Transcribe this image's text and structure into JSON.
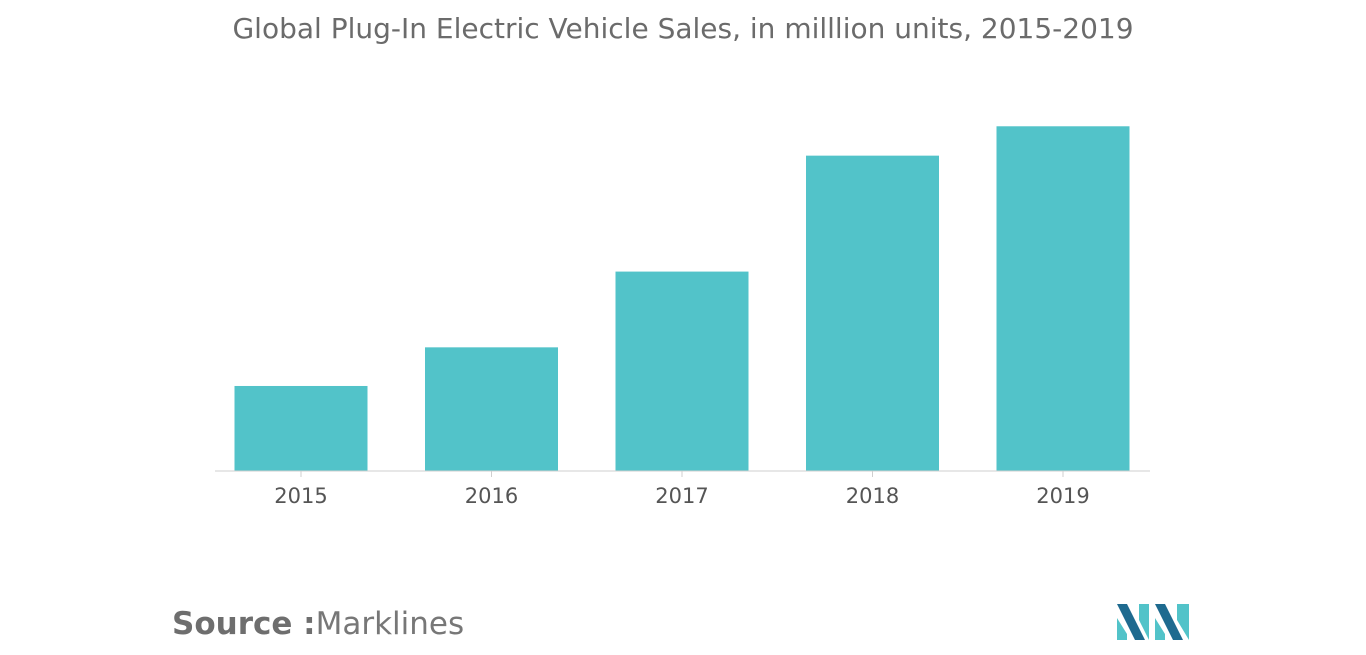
{
  "chart_data": {
    "type": "bar",
    "title": "Global Plug-In Electric Vehicle Sales, in milllion units, 2015-2019",
    "categories": [
      "2015",
      "2016",
      "2017",
      "2018",
      "2019"
    ],
    "values": [
      0.55,
      0.8,
      1.29,
      2.04,
      2.23
    ],
    "xlabel": "",
    "ylabel": "",
    "ylim": [
      0,
      2.4
    ],
    "grid": false,
    "legend": "none",
    "bar_color": "#52c3c9"
  },
  "source": {
    "label": "Source :",
    "value": "Marklines"
  },
  "colors": {
    "logo_dark": "#1e6a8f",
    "logo_light": "#52c3c9"
  }
}
